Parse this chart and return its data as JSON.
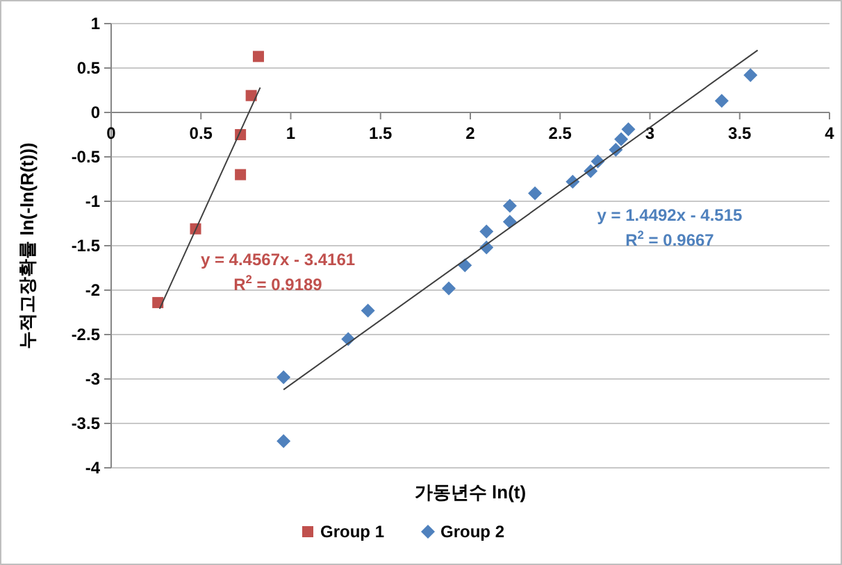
{
  "chart_data": {
    "type": "scatter",
    "xlabel": "가동년수 ln(t)",
    "ylabel": "누적고장확률 ln(-ln(R(t)))",
    "xlim": [
      0,
      4
    ],
    "xticks": [
      0,
      0.5,
      1,
      1.5,
      2,
      2.5,
      3,
      3.5,
      4
    ],
    "ylim": [
      -4,
      1
    ],
    "yticks": [
      -4,
      -3.5,
      -3,
      -2.5,
      -2,
      -1.5,
      -1,
      -0.5,
      0,
      0.5,
      1
    ],
    "grid": "y",
    "legend": "bottom",
    "series": [
      {
        "name": "Group 1",
        "marker": "square",
        "color": "#c0504d",
        "x": [
          0.26,
          0.47,
          0.72,
          0.72,
          0.78,
          0.82
        ],
        "values": [
          -2.14,
          -1.31,
          -0.25,
          -0.7,
          0.19,
          0.63
        ]
      },
      {
        "name": "Group 2",
        "marker": "diamond",
        "color": "#4f81bd",
        "x": [
          0.96,
          0.96,
          1.32,
          1.43,
          1.88,
          1.97,
          2.09,
          2.09,
          2.22,
          2.22,
          2.36,
          2.57,
          2.67,
          2.71,
          2.81,
          2.84,
          2.88,
          3.4,
          3.56
        ],
        "values": [
          -3.7,
          -2.98,
          -2.55,
          -2.23,
          -1.98,
          -1.72,
          -1.52,
          -1.34,
          -1.23,
          -1.05,
          -0.91,
          -0.78,
          -0.66,
          -0.55,
          -0.42,
          -0.3,
          -0.19,
          0.13,
          0.42
        ]
      },
      {
        "type": "line",
        "marker": "none",
        "color": "#404040",
        "x": [
          0.27,
          0.83
        ],
        "values": [
          -2.21,
          0.28
        ]
      },
      {
        "type": "line",
        "marker": "none",
        "color": "#404040",
        "x": [
          0.96,
          3.6
        ],
        "values": [
          -3.12,
          0.7
        ]
      }
    ],
    "annotations": [
      "y = 4.4567x - 3.4161",
      "R$^{2}$ = 0.9189",
      "y = 1.4492x - 4.515",
      "R$^{2}$ = 0.9667"
    ]
  }
}
